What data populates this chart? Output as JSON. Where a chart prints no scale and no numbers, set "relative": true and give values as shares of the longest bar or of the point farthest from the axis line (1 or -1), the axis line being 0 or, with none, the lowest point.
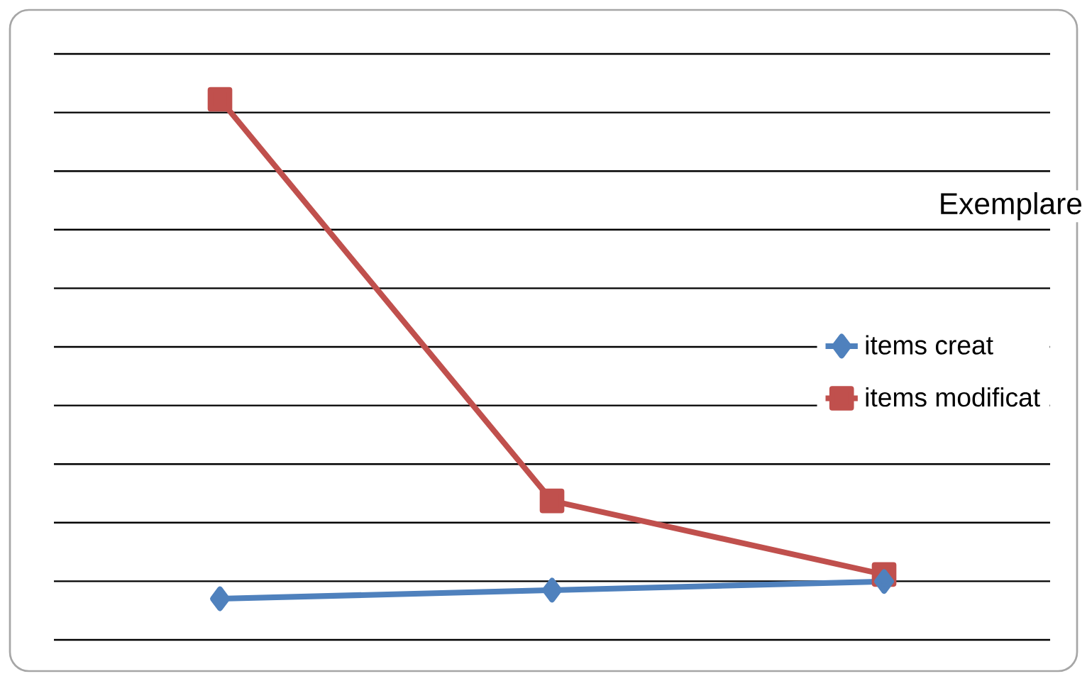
{
  "chart_data": {
    "type": "line",
    "relative": true,
    "legend_title": "Exemplare",
    "legend": "right",
    "grid": "y",
    "categories": [
      null,
      null,
      null
    ],
    "series": [
      {
        "name": "items creat",
        "color": "#4f81bd",
        "marker": "diamond",
        "values": [
          0.076,
          0.092,
          0.108
        ]
      },
      {
        "name": "items modificat",
        "color": "#c0504d",
        "marker": "square",
        "values": [
          1,
          0.257,
          0.121
        ]
      }
    ]
  }
}
